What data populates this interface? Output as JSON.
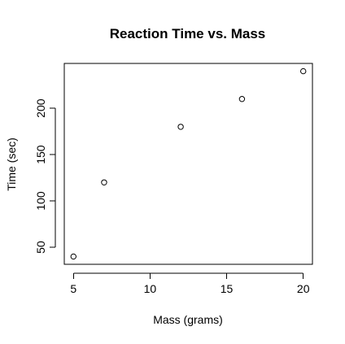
{
  "chart_data": {
    "type": "scatter",
    "title": "Reaction Time vs. Mass",
    "xlabel": "Mass (grams)",
    "ylabel": "Time (sec)",
    "x": [
      5,
      7,
      12,
      16,
      20
    ],
    "y": [
      40,
      120,
      180,
      210,
      240
    ],
    "xlim": [
      4.4,
      20.6
    ],
    "ylim": [
      31.6,
      248.4
    ],
    "xticks": [
      5,
      10,
      15,
      20
    ],
    "yticks": [
      50,
      100,
      150,
      200
    ],
    "grid": false,
    "legend": "none",
    "marker": "open-circle",
    "colors": {
      "points": "#000000",
      "frame": "#000000",
      "background": "#ffffff"
    }
  }
}
